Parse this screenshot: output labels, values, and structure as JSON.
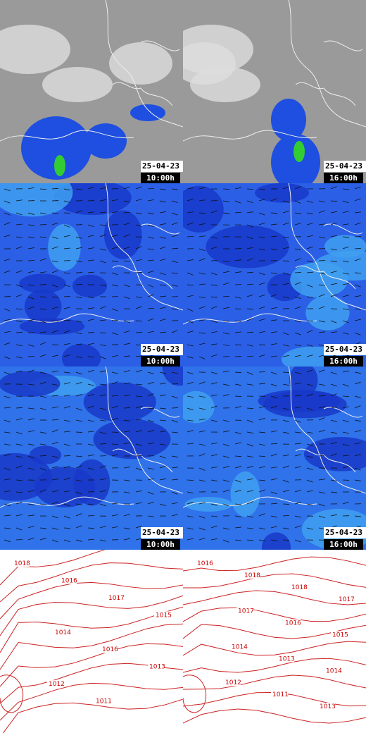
{
  "panels": [
    [
      {
        "date": "25-04-23",
        "time": "10:00h"
      },
      {
        "date": "25-04-23",
        "time": "16:00h"
      }
    ],
    [
      {
        "date": "25-04-23",
        "time": "10:00h"
      },
      {
        "date": "25-04-23",
        "time": "16:00h"
      }
    ],
    [
      {
        "date": "25-04-23",
        "time": "10:00h"
      },
      {
        "date": "25-04-23",
        "time": "16:00h"
      }
    ]
  ],
  "isobars": [
    [
      "1018",
      "1016",
      "1017",
      "1015",
      "1014",
      "1016",
      "1013",
      "1012",
      "1011"
    ],
    [
      "1016",
      "1018",
      "1018",
      "1017",
      "1017",
      "1016",
      "1015",
      "1014",
      "1013",
      "1014",
      "1012",
      "1011",
      "1013"
    ]
  ]
}
